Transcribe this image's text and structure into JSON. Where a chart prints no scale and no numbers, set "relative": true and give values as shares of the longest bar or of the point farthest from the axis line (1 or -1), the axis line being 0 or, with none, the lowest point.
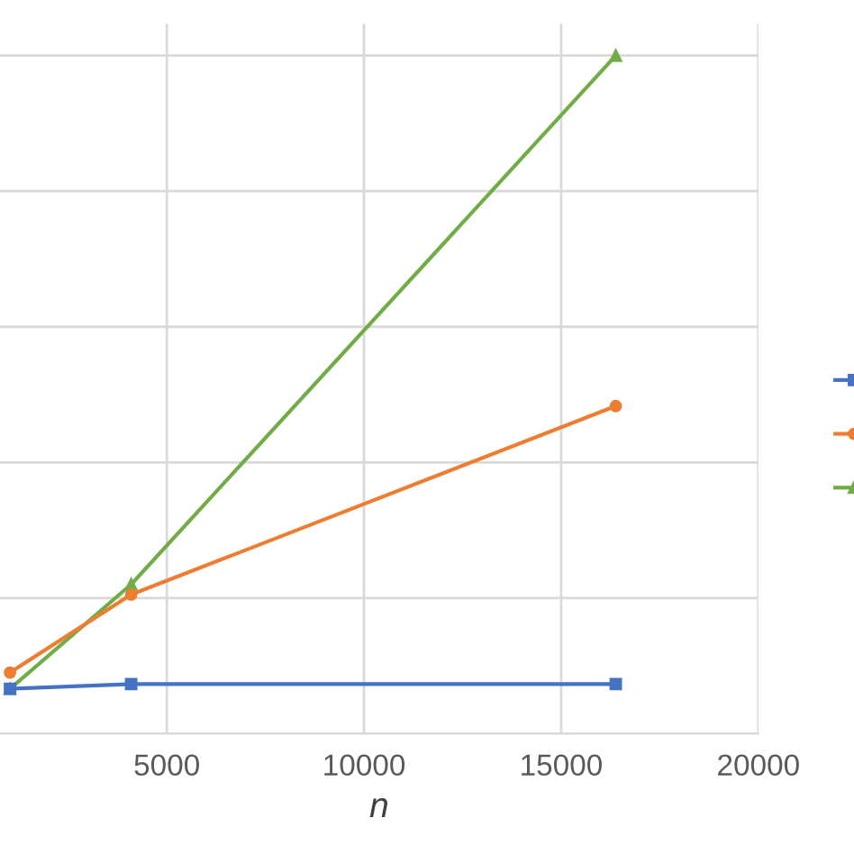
{
  "chart_data": {
    "type": "line",
    "xlabel": "n",
    "relative": true,
    "xlim": [
      770,
      20000
    ],
    "xticks": [
      5000,
      10000,
      15000,
      20000
    ],
    "grid": true,
    "series": [
      {
        "color": "#4472c4",
        "marker": "square",
        "x": [
          1024,
          4096,
          16384
        ],
        "values": [
          0.066,
          0.073,
          0.073
        ]
      },
      {
        "color": "#ed7d31",
        "marker": "circle",
        "x": [
          1024,
          4096,
          16384
        ],
        "values": [
          0.09,
          0.205,
          0.483
        ]
      },
      {
        "color": "#70ad47",
        "marker": "triangle",
        "x": [
          1024,
          4096,
          16384
        ],
        "values": [
          0.066,
          0.22,
          1
        ]
      }
    ]
  }
}
